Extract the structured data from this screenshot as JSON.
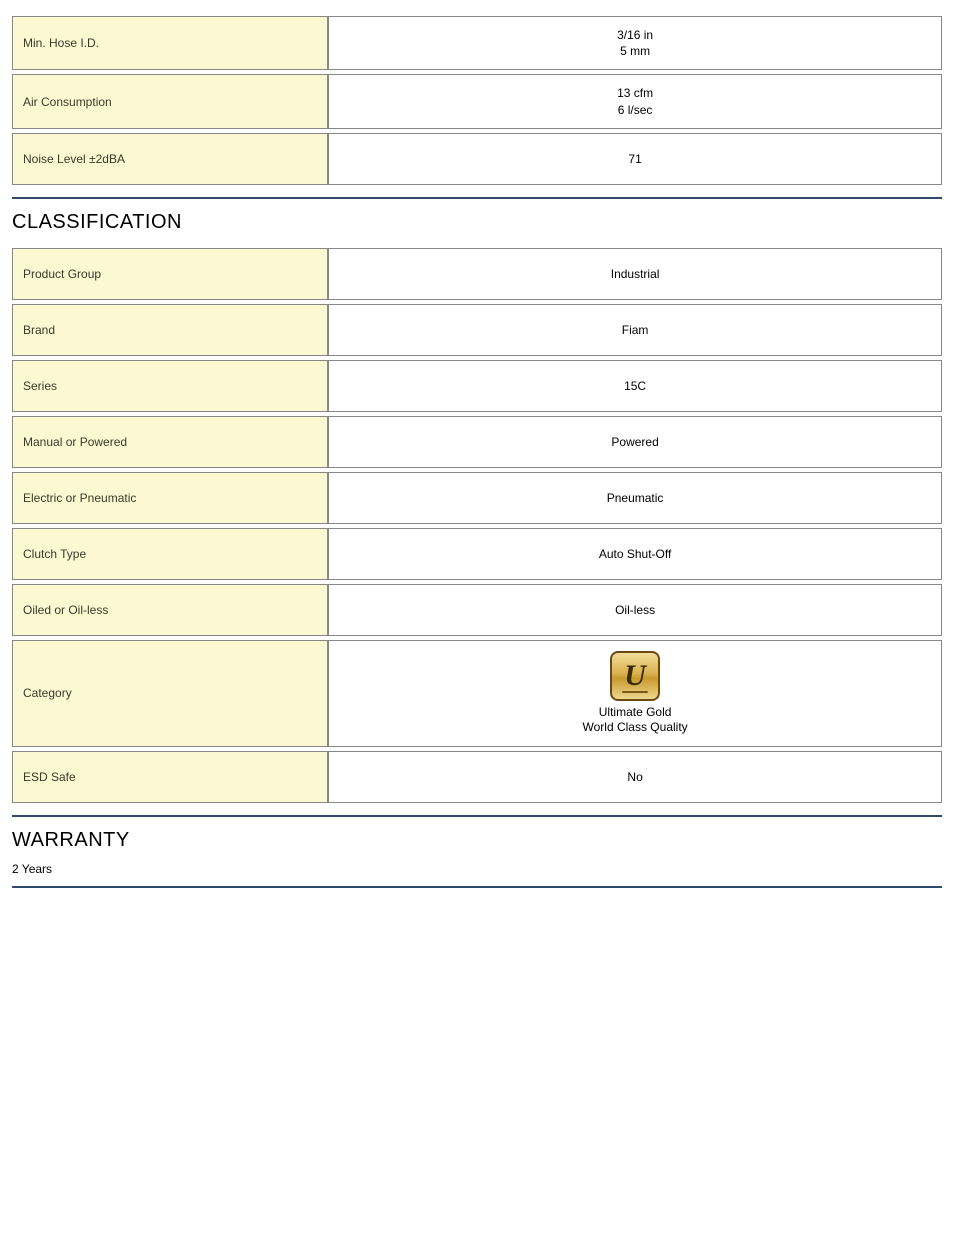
{
  "top_specs": [
    {
      "label": "Min. Hose I.D.",
      "value": "3/16 in\n5 mm"
    },
    {
      "label": "Air Consumption",
      "value": "13 cfm\n6 l/sec"
    },
    {
      "label": "Noise Level ±2dBA",
      "value": "71"
    }
  ],
  "classification": {
    "title": "CLASSIFICATION",
    "rows": [
      {
        "label": "Product Group",
        "value": "Industrial"
      },
      {
        "label": "Brand",
        "value": "Fiam"
      },
      {
        "label": "Series",
        "value": "15C"
      },
      {
        "label": "Manual or Powered",
        "value": "Powered"
      },
      {
        "label": "Electric or Pneumatic",
        "value": "Pneumatic"
      },
      {
        "label": "Clutch Type",
        "value": "Auto Shut-Off"
      },
      {
        "label": "Oiled or Oil-less",
        "value": "Oil-less"
      }
    ],
    "category": {
      "label": "Category",
      "badge_letter": "U",
      "line1": "Ultimate Gold",
      "line2": "World Class Quality"
    },
    "esd": {
      "label": "ESD Safe",
      "value": "No"
    }
  },
  "warranty": {
    "title": "WARRANTY",
    "text": "2 Years"
  },
  "colors": {
    "label_bg": "#fcf9d2",
    "divider": "#2f4a6b",
    "border": "#888888"
  }
}
